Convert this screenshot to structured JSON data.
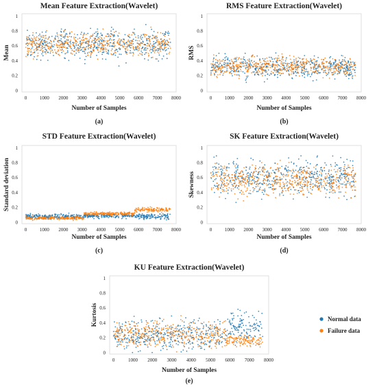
{
  "chart_data": [
    {
      "id": "mean",
      "type": "scatter",
      "title": "Mean Feature Extraction(Wavelet)",
      "xlabel": "Number of Samples",
      "ylabel": "Mean",
      "panel_label": "(a)",
      "xlim": [
        -200,
        8000
      ],
      "ylim": [
        -0.02,
        1.03
      ],
      "xticks": [
        "0",
        "1000",
        "2000",
        "3000",
        "4000",
        "5000",
        "6000",
        "7000",
        "8000"
      ],
      "yticks": [
        "0",
        "0.2",
        "0.4",
        "0.6",
        "0.8",
        "1"
      ],
      "series": [
        {
          "name": "Normal data",
          "x_range": [
            0,
            7700
          ],
          "segments": [
            {
              "x": [
                0,
                7700
              ],
              "y_center": 0.62,
              "spread": 0.33
            }
          ]
        },
        {
          "name": "Failure data",
          "x_range": [
            0,
            7700
          ],
          "segments": [
            {
              "x": [
                0,
                7700
              ],
              "y_center": 0.62,
              "spread": 0.27
            }
          ]
        }
      ]
    },
    {
      "id": "rms",
      "type": "scatter",
      "title": "RMS Feature Extraction(Wavelet)",
      "xlabel": "Number of Samples",
      "ylabel": "RMS",
      "panel_label": "(b)",
      "xlim": [
        -200,
        8000
      ],
      "ylim": [
        -0.02,
        1.03
      ],
      "xticks": [
        "0",
        "1000",
        "2000",
        "3000",
        "4000",
        "5000",
        "6000",
        "7000",
        "8000"
      ],
      "yticks": [
        "0",
        "0.2",
        "0.4",
        "0.6",
        "0.8",
        "1"
      ],
      "series": [
        {
          "name": "Normal data",
          "x_range": [
            0,
            7700
          ],
          "segments": [
            {
              "x": [
                0,
                7700
              ],
              "y_center": 0.31,
              "spread": 0.24
            }
          ]
        },
        {
          "name": "Failure data",
          "x_range": [
            0,
            7700
          ],
          "segments": [
            {
              "x": [
                0,
                7700
              ],
              "y_center": 0.32,
              "spread": 0.2
            }
          ]
        }
      ]
    },
    {
      "id": "std",
      "type": "scatter",
      "title": "STD Feature Extraction(Wavelet)",
      "xlabel": "Number of Samples",
      "ylabel": "Standard deviation",
      "panel_label": "(c)",
      "xlim": [
        -200,
        8000
      ],
      "ylim": [
        -0.02,
        1.03
      ],
      "xticks": [
        "0",
        "1000",
        "2000",
        "3000",
        "4000",
        "5000",
        "6000",
        "7000",
        "8000"
      ],
      "yticks": [
        "0",
        "0.2",
        "0.4",
        "0.6",
        "0.8",
        "1"
      ],
      "series": [
        {
          "name": "Normal data",
          "x_range": [
            0,
            7700
          ],
          "segments": [
            {
              "x": [
                0,
                3100
              ],
              "y_center": 0.075,
              "spread": 0.06
            },
            {
              "x": [
                3100,
                5800
              ],
              "y_center": 0.085,
              "spread": 0.05
            },
            {
              "x": [
                5800,
                7700
              ],
              "y_center": 0.075,
              "spread": 0.06
            }
          ]
        },
        {
          "name": "Failure data",
          "x_range": [
            0,
            7700
          ],
          "segments": [
            {
              "x": [
                0,
                3100
              ],
              "y_center": 0.055,
              "spread": 0.04
            },
            {
              "x": [
                3100,
                5800
              ],
              "y_center": 0.115,
              "spread": 0.04
            },
            {
              "x": [
                5800,
                7700
              ],
              "y_center": 0.165,
              "spread": 0.05
            }
          ]
        }
      ]
    },
    {
      "id": "sk",
      "type": "scatter",
      "title": "SK Feature Extraction(Wavelet)",
      "xlabel": "Number of Samples",
      "ylabel": "Skewness",
      "panel_label": "(d)",
      "xlim": [
        -200,
        8000
      ],
      "ylim": [
        -0.02,
        1.03
      ],
      "xticks": [
        "0",
        "1000",
        "2000",
        "3000",
        "4000",
        "5000",
        "6000",
        "7000",
        "8000"
      ],
      "yticks": [
        "0",
        "0.2",
        "0.4",
        "0.6",
        "0.8",
        "1"
      ],
      "series": [
        {
          "name": "Normal data",
          "x_range": [
            0,
            7700
          ],
          "segments": [
            {
              "x": [
                0,
                7700
              ],
              "y_center": 0.6,
              "spread": 0.4
            }
          ]
        },
        {
          "name": "Failure data",
          "x_range": [
            0,
            7700
          ],
          "segments": [
            {
              "x": [
                0,
                7700
              ],
              "y_center": 0.56,
              "spread": 0.33
            }
          ]
        }
      ]
    },
    {
      "id": "ku",
      "type": "scatter",
      "title": "KU Feature Extraction(Wavelet)",
      "xlabel": "Number of Samples",
      "ylabel": "Kurtosis",
      "panel_label": "(e)",
      "xlim": [
        -200,
        8000
      ],
      "ylim": [
        -0.02,
        1.03
      ],
      "xticks": [
        "0",
        "1000",
        "2000",
        "3000",
        "4000",
        "5000",
        "6000",
        "7000",
        "8000"
      ],
      "yticks": [
        "0",
        "0.2",
        "0.4",
        "0.6",
        "0.8",
        "1"
      ],
      "series": [
        {
          "name": "Normal data",
          "x_range": [
            0,
            7700
          ],
          "segments": [
            {
              "x": [
                0,
                5800
              ],
              "y_center": 0.24,
              "spread": 0.32
            },
            {
              "x": [
                5800,
                7700
              ],
              "y_center": 0.35,
              "spread": 0.36
            }
          ]
        },
        {
          "name": "Failure data",
          "x_range": [
            0,
            7700
          ],
          "segments": [
            {
              "x": [
                0,
                5800
              ],
              "y_center": 0.24,
              "spread": 0.3
            },
            {
              "x": [
                5800,
                7700
              ],
              "y_center": 0.16,
              "spread": 0.12
            }
          ]
        }
      ]
    }
  ],
  "legend": {
    "placement": "right",
    "items": [
      {
        "label": "Normal data",
        "color": "#1f77b4"
      },
      {
        "label": "Failure data",
        "color": "#ff7f0e"
      }
    ]
  },
  "colors": {
    "normal": "#1f77b4",
    "failure": "#ff7f0e"
  }
}
